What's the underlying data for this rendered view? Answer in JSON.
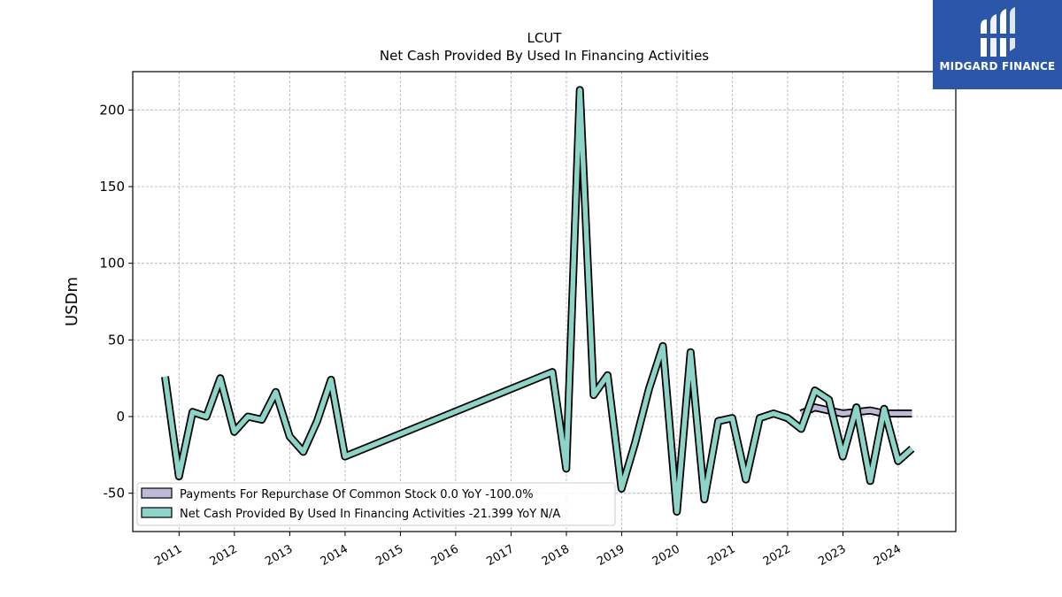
{
  "brand": {
    "name": "MIDGARD FINANCE"
  },
  "colors": {
    "payments_fill": "#bebada",
    "financing_fill": "#8dd3c7",
    "edge": "#000000",
    "logo_bg": "#2c56a8"
  },
  "chart_data": {
    "type": "line",
    "title": "LCUT",
    "subtitle": "Net Cash Provided By Used In Financing Activities",
    "ylabel": "USDm",
    "xlabel": "",
    "xlim": [
      "2010-03-01",
      "2025-01-15"
    ],
    "ylim": [
      -75,
      225
    ],
    "yticks": [
      -50,
      0,
      50,
      100,
      150,
      200
    ],
    "xticks": [
      "2011",
      "2012",
      "2013",
      "2014",
      "2015",
      "2016",
      "2017",
      "2018",
      "2019",
      "2020",
      "2021",
      "2022",
      "2023",
      "2024"
    ],
    "grid": true,
    "legend_position": "lower-left",
    "series": [
      {
        "name": "Payments For Repurchase Of Common Stock",
        "legend_label": "Payments For Repurchase Of Common Stock  0.0 YoY -100.0%",
        "x": [
          "2022-03-31",
          "2022-06-30",
          "2022-09-30",
          "2022-12-31",
          "2023-03-31",
          "2023-06-30",
          "2023-09-30",
          "2023-12-31",
          "2024-03-31"
        ],
        "values": [
          2,
          6,
          4,
          2,
          3,
          4,
          2,
          2,
          2
        ]
      },
      {
        "name": "Net Cash Provided By Used In Financing Activities",
        "legend_label": "Net Cash Provided By Used In Financing Activities  -21.399 YoY N/A",
        "x": [
          "2010-09-30",
          "2010-12-31",
          "2011-03-31",
          "2011-06-30",
          "2011-09-30",
          "2011-12-31",
          "2012-03-31",
          "2012-06-30",
          "2012-09-30",
          "2012-12-31",
          "2013-03-31",
          "2013-06-30",
          "2013-09-30",
          "2013-12-31",
          "2017-09-30",
          "2017-12-31",
          "2018-03-31",
          "2018-06-30",
          "2018-09-30",
          "2018-12-31",
          "2019-03-31",
          "2019-06-30",
          "2019-09-30",
          "2019-12-31",
          "2020-03-31",
          "2020-06-30",
          "2020-09-30",
          "2020-12-31",
          "2021-03-31",
          "2021-06-30",
          "2021-09-30",
          "2021-12-31",
          "2022-03-31",
          "2022-06-30",
          "2022-09-30",
          "2022-12-31",
          "2023-03-31",
          "2023-06-30",
          "2023-09-30",
          "2023-12-31",
          "2024-03-31",
          "2024-06-30"
        ],
        "values": [
          26,
          -39,
          3,
          0,
          25,
          -10,
          0,
          -2,
          16,
          -13,
          -23,
          -3,
          24,
          -26,
          29,
          -34,
          213,
          14,
          27,
          -47,
          -17,
          18,
          46,
          -62,
          42,
          -54,
          -3,
          -1,
          -41,
          -1,
          2,
          -1,
          -8,
          17,
          11,
          -26,
          6,
          -42,
          5,
          -29,
          -21,
          null
        ]
      }
    ]
  }
}
